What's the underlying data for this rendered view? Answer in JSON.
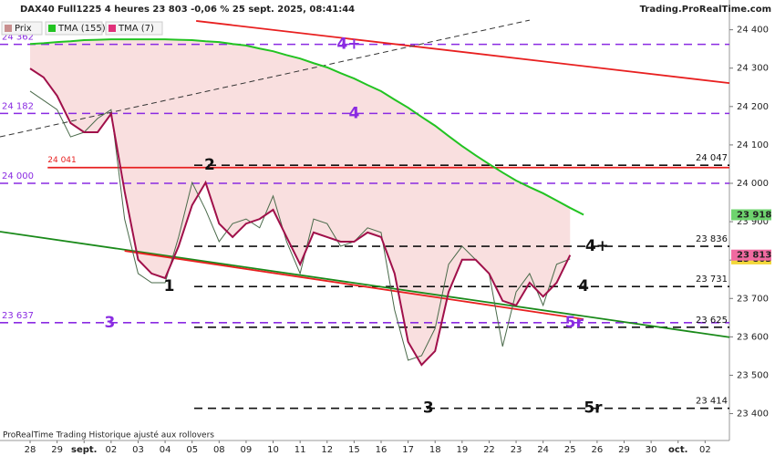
{
  "header": {
    "title": "DAX40 Full1225 4 heures 23 803 -0,06 % 25 sept. 2025, 08:41:44",
    "site": "Trading.ProRealTime.com"
  },
  "footer": "ProRealTime Trading  Historique ajusté aux rollovers",
  "chart_data": {
    "type": "line",
    "categories": [
      "28",
      null,
      "29",
      null,
      "sept.",
      null,
      "02",
      null,
      "03",
      null,
      "04",
      null,
      "05",
      null,
      "08",
      null,
      "09",
      null,
      "10",
      null,
      "11",
      null,
      "12",
      null,
      "15",
      null,
      "16",
      null,
      "17",
      null,
      "18",
      null,
      "19",
      null,
      "22",
      null,
      "23",
      null,
      "24",
      null,
      "25",
      null,
      "26",
      null,
      "29",
      null,
      "30",
      null,
      "oct.",
      null,
      "02",
      null
    ],
    "xlim": [
      -2.23,
      51.8
    ],
    "ylim": [
      23330,
      24430
    ],
    "yticks": [
      {
        "value": 23400,
        "label": "23 400"
      },
      {
        "value": 23500,
        "label": "23 500"
      },
      {
        "value": 23600,
        "label": "23 600"
      },
      {
        "value": 23700,
        "label": "23 700"
      },
      {
        "value": 23800,
        "label": "23 800"
      },
      {
        "value": 23900,
        "label": "23 900"
      },
      {
        "value": 24000,
        "label": "24 000"
      },
      {
        "value": 24100,
        "label": "24 100"
      },
      {
        "value": 24200,
        "label": "24 200"
      },
      {
        "value": 24300,
        "label": "24 300"
      },
      {
        "value": 24400,
        "label": "24 400"
      }
    ],
    "series": [
      {
        "name": "Prix",
        "color": "#4a6a4a",
        "legend_color": "#c98f8f",
        "box_color": "#f2d73a",
        "last_label": "23 803",
        "values": [
          24240,
          24216,
          24192,
          24121,
          24133,
          24169,
          24192,
          23907,
          23765,
          23741,
          23741,
          23860,
          24002,
          23931,
          23848,
          23895,
          23907,
          23884,
          23967,
          23848,
          23765,
          23907,
          23895,
          23836,
          23848,
          23884,
          23872,
          23670,
          23539,
          23551,
          23622,
          23789,
          23836,
          23801,
          23765,
          23575,
          23717,
          23765,
          23682,
          23789,
          23803,
          null,
          null,
          null,
          null,
          null,
          null,
          null,
          null,
          null,
          null,
          null
        ]
      },
      {
        "name": "TMA (155)",
        "color": "#22c322",
        "legend_color": "#22c322",
        "box_color": "#6ed36e",
        "last_label": "23 918",
        "values": [
          24363,
          24365,
          24368,
          24370,
          24373,
          24374,
          24375,
          24375,
          24375,
          24375,
          24375,
          24374,
          24373,
          24370,
          24368,
          24363,
          24359,
          24351,
          24344,
          24334,
          24325,
          24313,
          24302,
          24287,
          24273,
          24256,
          24240,
          24218,
          24197,
          24173,
          24150,
          24123,
          24097,
          24073,
          24050,
          24028,
          24007,
          23990,
          23974,
          23955,
          23936,
          23918,
          null,
          null,
          null,
          null,
          null,
          null,
          null,
          null,
          null,
          null
        ]
      },
      {
        "name": "TMA (7)",
        "color": "#a0104a",
        "legend_color": "#e0307a",
        "box_color": "#f06aa0",
        "last_label": "23 813",
        "values": [
          24299,
          24276,
          24228,
          24157,
          24133,
          24133,
          24181,
          23979,
          23801,
          23765,
          23753,
          23836,
          23943,
          24002,
          23895,
          23860,
          23895,
          23907,
          23931,
          23860,
          23789,
          23872,
          23860,
          23848,
          23848,
          23872,
          23860,
          23765,
          23587,
          23527,
          23563,
          23717,
          23801,
          23801,
          23765,
          23694,
          23682,
          23741,
          23705,
          23741,
          23813,
          null,
          null,
          null,
          null,
          null,
          null,
          null,
          null,
          null,
          null,
          null
        ]
      }
    ],
    "levels": [
      {
        "value": 24362,
        "label": "24 362",
        "color": "#8a2be2",
        "side": "left"
      },
      {
        "value": 24182,
        "label": "24 182",
        "color": "#8a2be2",
        "side": "left"
      },
      {
        "value": 24000,
        "label": "24 000",
        "color": "#8a2be2",
        "side": "left"
      },
      {
        "value": 23637,
        "label": "23 637",
        "color": "#8a2be2",
        "side": "left"
      },
      {
        "value": 24047,
        "label": "24 047",
        "color": "#111111",
        "side": "right"
      },
      {
        "value": 23836,
        "label": "23 836",
        "color": "#111111",
        "side": "right"
      },
      {
        "value": 23731,
        "label": "23 731",
        "color": "#111111",
        "side": "right"
      },
      {
        "value": 23625,
        "label": "23 625",
        "color": "#111111",
        "side": "right"
      },
      {
        "value": 23414,
        "label": "23 414",
        "color": "#111111",
        "side": "right"
      }
    ],
    "trendlines": [
      {
        "x": [
          1.3,
          51.8
        ],
        "y": [
          24041,
          24041
        ],
        "color": "#e82020",
        "label": "24 041"
      },
      {
        "x": [
          12.3,
          51.8
        ],
        "y": [
          24423,
          24261
        ],
        "color": "#e82020"
      },
      {
        "x": [
          -2.23,
          37
        ],
        "y": [
          24121,
          24425
        ],
        "color": "#333333",
        "dash": true
      },
      {
        "x": [
          -2.23,
          51.8
        ],
        "y": [
          23874,
          23599
        ],
        "color": "#1a8a1a"
      },
      {
        "x": [
          7,
          41
        ],
        "y": [
          23824,
          23646
        ],
        "color": "#e82020"
      }
    ],
    "wave_labels": [
      {
        "text": "4+",
        "x": 23.6,
        "y": 24362,
        "color": "#8a2be2"
      },
      {
        "text": "4",
        "x": 24,
        "y": 24182,
        "color": "#8a2be2"
      },
      {
        "text": "3",
        "x": 5.9,
        "y": 23637,
        "color": "#8a2be2"
      },
      {
        "text": "5r",
        "x": 40.3,
        "y": 23637,
        "color": "#8a2be2"
      },
      {
        "text": "2",
        "x": 13.3,
        "y": 24047,
        "color": "#111111"
      },
      {
        "text": "1",
        "x": 10.3,
        "y": 23731,
        "color": "#111111"
      },
      {
        "text": "3",
        "x": 29.5,
        "y": 23414,
        "color": "#111111"
      },
      {
        "text": "4+",
        "x": 42,
        "y": 23836,
        "color": "#111111"
      },
      {
        "text": "4",
        "x": 41,
        "y": 23731,
        "color": "#111111"
      },
      {
        "text": "5r",
        "x": 41.7,
        "y": 23414,
        "color": "#111111"
      }
    ]
  }
}
